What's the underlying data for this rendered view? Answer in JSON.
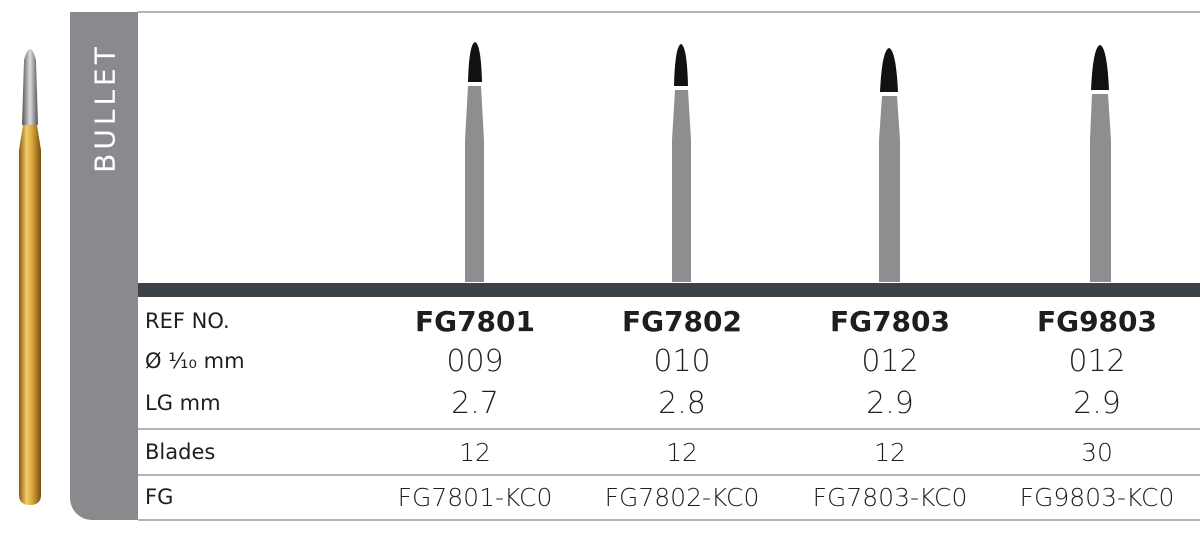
{
  "category": "BULLET",
  "table": {
    "headers": [
      "REF NO.",
      "FG7801",
      "FG7802",
      "FG7803",
      "FG9803"
    ],
    "rows": [
      [
        "Ø ¹⁄₁₀ mm",
        "009",
        "010",
        "012",
        "012"
      ],
      [
        "LG mm",
        "2.7",
        "2.8",
        "2.9",
        "2.9"
      ],
      [
        "Blades",
        "12",
        "12",
        "12",
        "30"
      ],
      [
        "FG",
        "FG7801-KC0",
        "FG7802-KC0",
        "FG7803-KC0",
        "FG9803-KC0"
      ]
    ]
  }
}
